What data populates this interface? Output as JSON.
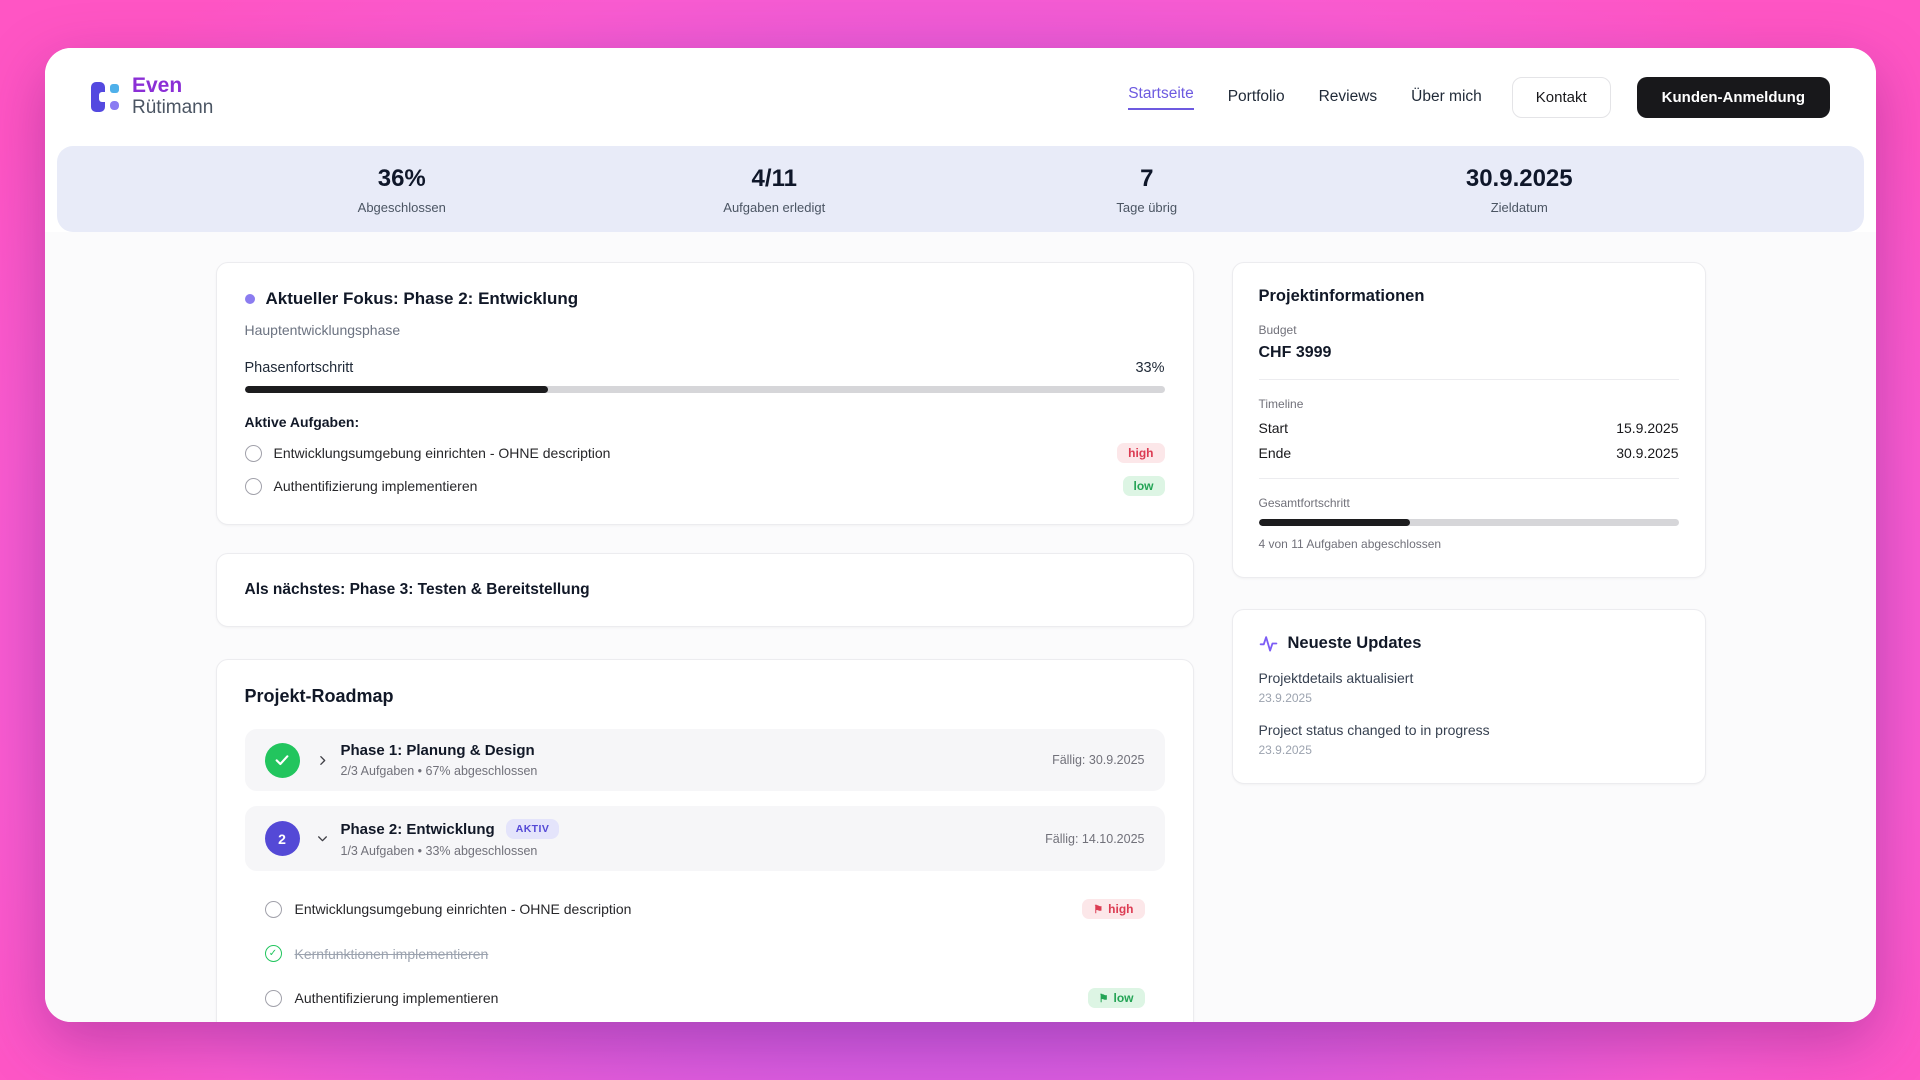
{
  "colors": {
    "accent_purple": "#6d5ae0",
    "brand_purple": "#8b2fd6",
    "progress_fill": "#1c1c1e",
    "stats_band": "#e8ebf8",
    "high_bg": "#fce7e9",
    "high_text": "#dc3b52",
    "low_bg": "#ddf5e4",
    "low_text": "#23a455",
    "done_green": "#22c55e",
    "active_phase": "#5449d6",
    "frame_gradient_pink": "#ff55c4",
    "frame_gradient_purple": "#a05df2"
  },
  "header": {
    "logo_line1": "Even",
    "logo_line2": "Rütimann",
    "nav": [
      {
        "label": "Startseite",
        "active": true
      },
      {
        "label": "Portfolio",
        "active": false
      },
      {
        "label": "Reviews",
        "active": false
      },
      {
        "label": "Über mich",
        "active": false
      }
    ],
    "kontakt_label": "Kontakt",
    "cta_label": "Kunden-Anmeldung"
  },
  "stats": [
    {
      "value": "36%",
      "label": "Abgeschlossen"
    },
    {
      "value": "4/11",
      "label": "Aufgaben erledigt"
    },
    {
      "value": "7",
      "label": "Tage übrig"
    },
    {
      "value": "30.9.2025",
      "label": "Zieldatum"
    }
  ],
  "focus": {
    "title": "Aktueller Fokus: Phase 2: Entwicklung",
    "subtitle": "Hauptentwicklungsphase",
    "progress_label": "Phasenfortschritt",
    "progress_value": "33%",
    "progress_pct": 33,
    "tasks_heading": "Aktive Aufgaben:",
    "tasks": [
      {
        "label": "Entwicklungsumgebung einrichten - OHNE description",
        "priority": "high"
      },
      {
        "label": "Authentifizierung implementieren",
        "priority": "low"
      }
    ]
  },
  "next": {
    "title": "Als nächstes: Phase 3: Testen & Bereitstellung"
  },
  "roadmap": {
    "title": "Projekt-Roadmap",
    "phases": [
      {
        "name": "Phase 1: Planung & Design",
        "meta": "2/3 Aufgaben • 67% abgeschlossen",
        "due": "Fällig: 30.9.2025",
        "state": "done"
      },
      {
        "name": "Phase 2: Entwicklung",
        "number": "2",
        "badge": "AKTIV",
        "meta": "1/3 Aufgaben • 33% abgeschlossen",
        "due": "Fällig: 14.10.2025",
        "state": "active"
      }
    ],
    "tasks": [
      {
        "label": "Entwicklungsumgebung einrichten - OHNE description",
        "priority": "high",
        "done": false
      },
      {
        "label": "Kernfunktionen implementieren",
        "done": true
      },
      {
        "label": "Authentifizierung implementieren",
        "priority": "low",
        "done": false
      }
    ],
    "flag_glyph": "⚑",
    "check_glyph": "✓"
  },
  "project_info": {
    "title": "Projektinformationen",
    "budget_label": "Budget",
    "budget_value": "CHF 3999",
    "timeline_label": "Timeline",
    "start_label": "Start",
    "start_value": "15.9.2025",
    "end_label": "Ende",
    "end_value": "30.9.2025",
    "overall_label": "Gesamtfortschritt",
    "overall_pct": 36,
    "overall_caption": "4 von 11 Aufgaben abgeschlossen"
  },
  "updates": {
    "title": "Neueste Updates",
    "items": [
      {
        "title": "Projektdetails aktualisiert",
        "date": "23.9.2025"
      },
      {
        "title": "Project status changed to in progress",
        "date": "23.9.2025"
      }
    ]
  }
}
